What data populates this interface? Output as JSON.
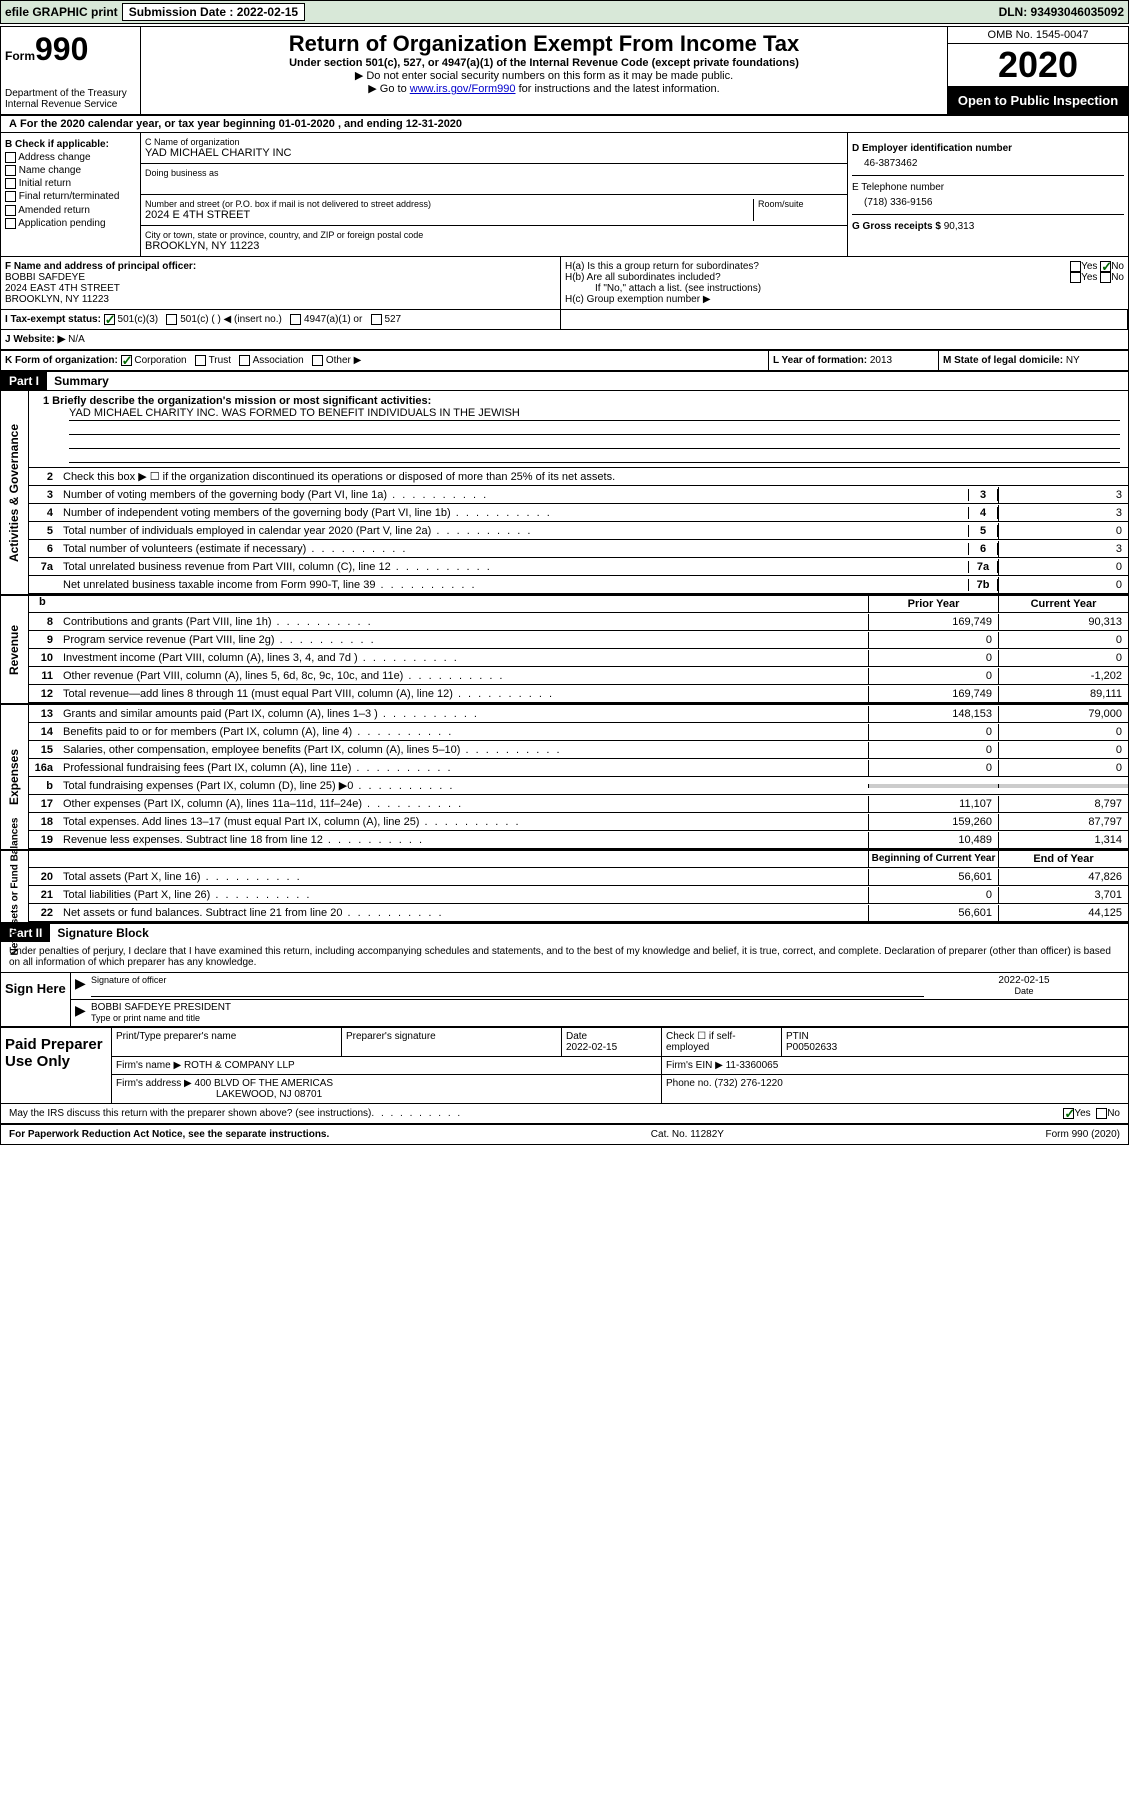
{
  "header_bar": {
    "efile": "efile GRAPHIC print",
    "submission_label": "Submission Date : 2022-02-15",
    "dln": "DLN: 93493046035092"
  },
  "form_id": {
    "form_word": "Form",
    "number": "990",
    "dept": "Department of the Treasury",
    "irs": "Internal Revenue Service"
  },
  "title": {
    "main": "Return of Organization Exempt From Income Tax",
    "sub": "Under section 501(c), 527, or 4947(a)(1) of the Internal Revenue Code (except private foundations)",
    "note1": "▶ Do not enter social security numbers on this form as it may be made public.",
    "note2_pre": "▶ Go to ",
    "note2_link": "www.irs.gov/Form990",
    "note2_post": " for instructions and the latest information."
  },
  "omb": {
    "num": "OMB No. 1545-0047",
    "year": "2020",
    "inspect": "Open to Public Inspection"
  },
  "tax_year": "For the 2020 calendar year, or tax year beginning 01-01-2020   , and ending 12-31-2020",
  "section_b": {
    "label": "B Check if applicable:",
    "items": [
      "Address change",
      "Name change",
      "Initial return",
      "Final return/terminated",
      "Amended return",
      "Application pending"
    ]
  },
  "section_c": {
    "name_label": "C Name of organization",
    "name": "YAD MICHAEL CHARITY INC",
    "dba_label": "Doing business as",
    "street_label": "Number and street (or P.O. box if mail is not delivered to street address)",
    "room_label": "Room/suite",
    "street": "2024 E 4TH STREET",
    "city_label": "City or town, state or province, country, and ZIP or foreign postal code",
    "city": "BROOKLYN, NY  11223"
  },
  "section_d": {
    "label": "D Employer identification number",
    "ein": "46-3873462"
  },
  "section_e": {
    "label": "E Telephone number",
    "phone": "(718) 336-9156"
  },
  "section_g": {
    "label": "G Gross receipts $",
    "amount": "90,313"
  },
  "section_f": {
    "label": "F  Name and address of principal officer:",
    "name": "BOBBI SAFDEYE",
    "street": "2024 EAST 4TH STREET",
    "city": "BROOKLYN, NY  11223"
  },
  "section_h": {
    "ha": "H(a)  Is this a group return for subordinates?",
    "hb": "H(b)  Are all subordinates included?",
    "hb_note": "If \"No,\" attach a list. (see instructions)",
    "hc": "H(c)  Group exemption number ▶",
    "yes": "Yes",
    "no": "No"
  },
  "section_i": {
    "label": "I   Tax-exempt status:",
    "opts": [
      "501(c)(3)",
      "501(c) (  ) ◀ (insert no.)",
      "4947(a)(1) or",
      "527"
    ]
  },
  "section_j": {
    "label": "J   Website: ▶",
    "val": "N/A"
  },
  "section_k": {
    "label": "K Form of organization:",
    "opts": [
      "Corporation",
      "Trust",
      "Association",
      "Other ▶"
    ]
  },
  "section_l": {
    "label": "L Year of formation:",
    "val": "2013"
  },
  "section_m": {
    "label": "M State of legal domicile:",
    "val": "NY"
  },
  "part1": {
    "header": "Part I",
    "title": "Summary",
    "mission_label": "1  Briefly describe the organization's mission or most significant activities:",
    "mission": "YAD MICHAEL CHARITY INC. WAS FORMED TO BENEFIT INDIVIDUALS IN THE JEWISH",
    "line2": "Check this box ▶ ☐  if the organization discontinued its operations or disposed of more than 25% of its net assets.",
    "lines_single": [
      {
        "n": "3",
        "desc": "Number of voting members of the governing body (Part VI, line 1a)",
        "box": "3",
        "val": "3"
      },
      {
        "n": "4",
        "desc": "Number of independent voting members of the governing body (Part VI, line 1b)",
        "box": "4",
        "val": "3"
      },
      {
        "n": "5",
        "desc": "Total number of individuals employed in calendar year 2020 (Part V, line 2a)",
        "box": "5",
        "val": "0"
      },
      {
        "n": "6",
        "desc": "Total number of volunteers (estimate if necessary)",
        "box": "6",
        "val": "3"
      },
      {
        "n": "7a",
        "desc": "Total unrelated business revenue from Part VIII, column (C), line 12",
        "box": "7a",
        "val": "0"
      },
      {
        "n": "",
        "desc": "Net unrelated business taxable income from Form 990-T, line 39",
        "box": "7b",
        "val": "0"
      }
    ],
    "col_headers": {
      "prior": "Prior Year",
      "current": "Current Year",
      "begin": "Beginning of Current Year",
      "end": "End of Year"
    },
    "revenue": [
      {
        "n": "8",
        "desc": "Contributions and grants (Part VIII, line 1h)",
        "p": "169,749",
        "c": "90,313"
      },
      {
        "n": "9",
        "desc": "Program service revenue (Part VIII, line 2g)",
        "p": "0",
        "c": "0"
      },
      {
        "n": "10",
        "desc": "Investment income (Part VIII, column (A), lines 3, 4, and 7d )",
        "p": "0",
        "c": "0"
      },
      {
        "n": "11",
        "desc": "Other revenue (Part VIII, column (A), lines 5, 6d, 8c, 9c, 10c, and 11e)",
        "p": "0",
        "c": "-1,202"
      },
      {
        "n": "12",
        "desc": "Total revenue—add lines 8 through 11 (must equal Part VIII, column (A), line 12)",
        "p": "169,749",
        "c": "89,111"
      }
    ],
    "expenses": [
      {
        "n": "13",
        "desc": "Grants and similar amounts paid (Part IX, column (A), lines 1–3 )",
        "p": "148,153",
        "c": "79,000"
      },
      {
        "n": "14",
        "desc": "Benefits paid to or for members (Part IX, column (A), line 4)",
        "p": "0",
        "c": "0"
      },
      {
        "n": "15",
        "desc": "Salaries, other compensation, employee benefits (Part IX, column (A), lines 5–10)",
        "p": "0",
        "c": "0"
      },
      {
        "n": "16a",
        "desc": "Professional fundraising fees (Part IX, column (A), line 11e)",
        "p": "0",
        "c": "0"
      },
      {
        "n": "b",
        "desc": "Total fundraising expenses (Part IX, column (D), line 25) ▶0",
        "p": "",
        "c": "",
        "shade": true
      },
      {
        "n": "17",
        "desc": "Other expenses (Part IX, column (A), lines 11a–11d, 11f–24e)",
        "p": "11,107",
        "c": "8,797"
      },
      {
        "n": "18",
        "desc": "Total expenses. Add lines 13–17 (must equal Part IX, column (A), line 25)",
        "p": "159,260",
        "c": "87,797"
      },
      {
        "n": "19",
        "desc": "Revenue less expenses. Subtract line 18 from line 12",
        "p": "10,489",
        "c": "1,314"
      }
    ],
    "netassets": [
      {
        "n": "20",
        "desc": "Total assets (Part X, line 16)",
        "p": "56,601",
        "c": "47,826"
      },
      {
        "n": "21",
        "desc": "Total liabilities (Part X, line 26)",
        "p": "0",
        "c": "3,701"
      },
      {
        "n": "22",
        "desc": "Net assets or fund balances. Subtract line 21 from line 20",
        "p": "56,601",
        "c": "44,125"
      }
    ],
    "side_labels": {
      "ag": "Activities & Governance",
      "rev": "Revenue",
      "exp": "Expenses",
      "na": "Net Assets or Fund Balances"
    }
  },
  "part2": {
    "header": "Part II",
    "title": "Signature Block",
    "decl": "Under penalties of perjury, I declare that I have examined this return, including accompanying schedules and statements, and to the best of my knowledge and belief, it is true, correct, and complete. Declaration of preparer (other than officer) is based on all information of which preparer has any knowledge.",
    "sign_here": "Sign Here",
    "sig_officer": "Signature of officer",
    "date_label": "Date",
    "sig_date": "2022-02-15",
    "officer_name": "BOBBI SAFDEYE  PRESIDENT",
    "officer_label": "Type or print name and title",
    "paid_prep": "Paid Preparer Use Only",
    "prep_name_label": "Print/Type preparer's name",
    "prep_sig_label": "Preparer's signature",
    "prep_date": "2022-02-15",
    "self_emp": "Check ☐ if self-employed",
    "ptin_label": "PTIN",
    "ptin": "P00502633",
    "firm_name_label": "Firm's name    ▶",
    "firm_name": "ROTH & COMPANY LLP",
    "firm_ein_label": "Firm's EIN ▶",
    "firm_ein": "11-3360065",
    "firm_addr_label": "Firm's address ▶",
    "firm_addr1": "400 BLVD OF THE AMERICAS",
    "firm_addr2": "LAKEWOOD, NJ  08701",
    "firm_phone_label": "Phone no.",
    "firm_phone": "(732) 276-1220",
    "discuss": "May the IRS discuss this return with the preparer shown above? (see instructions)"
  },
  "footer": {
    "left": "For Paperwork Reduction Act Notice, see the separate instructions.",
    "cat": "Cat. No. 11282Y",
    "right": "Form 990 (2020)"
  }
}
